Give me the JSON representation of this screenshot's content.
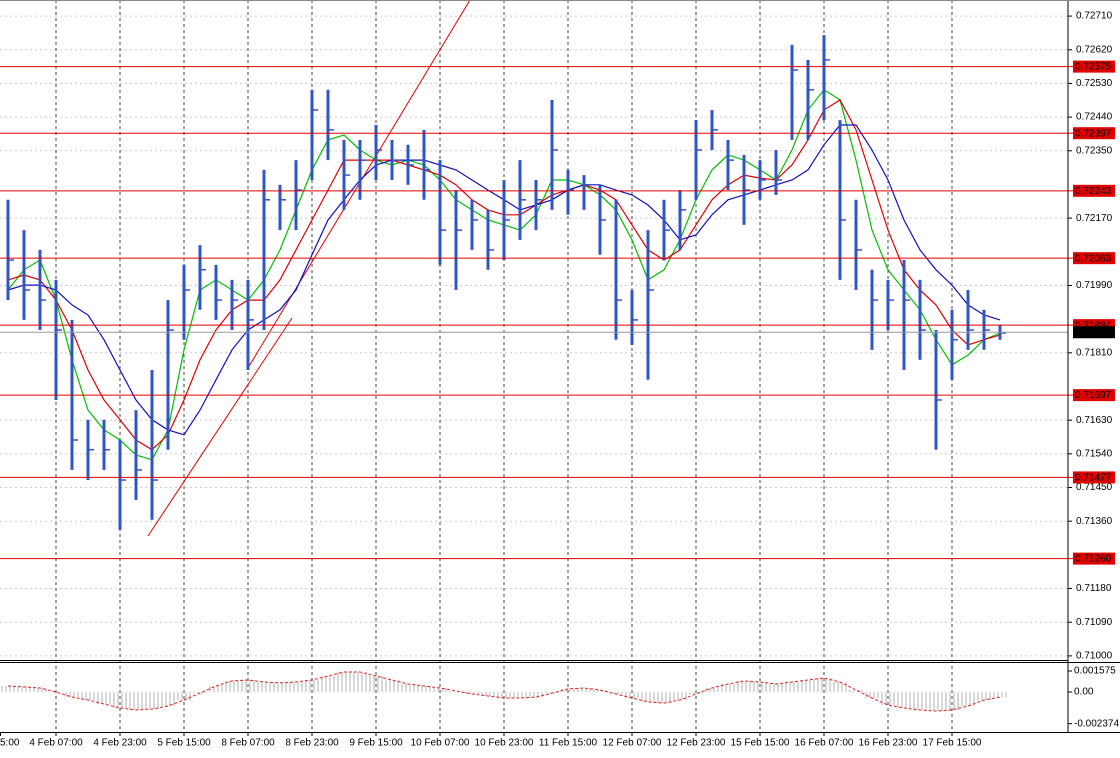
{
  "chart_data": [
    {
      "type": "ohlc",
      "categories": [
        "5:00",
        null,
        null,
        null,
        "4 Feb 07:00",
        null,
        null,
        null,
        "4 Feb 23:00",
        null,
        null,
        null,
        "5 Feb 15:00",
        null,
        null,
        null,
        "8 Feb 07:00",
        null,
        null,
        null,
        "8 Feb 23:00",
        null,
        null,
        null,
        "9 Feb 15:00",
        null,
        null,
        null,
        "10 Feb 07:00",
        null,
        null,
        null,
        "10 Feb 23:00",
        null,
        null,
        null,
        "11 Feb 15:00",
        null,
        null,
        null,
        "12 Feb 07:00",
        null,
        null,
        null,
        "12 Feb 23:00",
        null,
        null,
        null,
        "15 Feb 15:00",
        null,
        null,
        null,
        "16 Feb 07:00",
        null,
        null,
        null,
        "16 Feb 23:00",
        null,
        null,
        null,
        "17 Feb 15:00",
        null,
        null,
        null
      ],
      "high": [
        null,
        0.72219,
        0.72138,
        0.72085,
        0.72005,
        0.71898,
        0.71631,
        0.71631,
        0.71577,
        0.71657,
        0.71764,
        0.71951,
        0.72045,
        0.72098,
        0.72045,
        0.72005,
        0.72005,
        0.72299,
        0.72259,
        0.72325,
        0.72513,
        0.72513,
        0.72379,
        0.72379,
        0.72419,
        0.72379,
        0.72366,
        0.72406,
        0.72325,
        0.72245,
        0.72219,
        0.72192,
        0.72272,
        0.72325,
        0.72272,
        0.72486,
        0.72299,
        0.72285,
        0.72259,
        0.72219,
        0.71978,
        0.72138,
        0.72219,
        0.72245,
        0.72432,
        0.72459,
        0.72379,
        0.72339,
        0.72325,
        0.72352,
        0.72633,
        0.72593,
        0.72659,
        0.72432,
        0.72219,
        0.72032,
        0.72005,
        0.72058,
        0.72005,
        0.71871,
        0.71925,
        0.71978,
        0.71925,
        0.71885
      ],
      "low": [
        null,
        0.71951,
        0.71898,
        0.71871,
        0.71684,
        0.71497,
        0.7147,
        0.71497,
        0.71337,
        0.71417,
        0.71364,
        0.71551,
        0.71845,
        0.71925,
        0.71898,
        0.71871,
        0.71764,
        0.71871,
        0.72138,
        0.72138,
        0.72272,
        0.72325,
        0.72192,
        0.72219,
        0.72272,
        0.72272,
        0.72259,
        0.72219,
        0.72045,
        0.71978,
        0.72085,
        0.72032,
        0.72058,
        0.72112,
        0.72138,
        0.72192,
        0.72179,
        0.72192,
        0.72072,
        0.71845,
        0.71831,
        0.71738,
        0.72058,
        0.72085,
        0.72219,
        0.72352,
        0.72245,
        0.72152,
        0.72219,
        0.72232,
        0.72379,
        0.72379,
        0.72432,
        0.72005,
        0.71978,
        0.71818,
        0.71871,
        0.71764,
        0.71791,
        0.71551,
        0.71738,
        0.71818,
        0.71818,
        0.71845
      ],
      "close": [
        null,
        0.72058,
        0.71978,
        0.71951,
        0.71871,
        0.71577,
        0.71551,
        0.71551,
        0.7147,
        0.71497,
        0.7147,
        0.71871,
        0.71978,
        0.72032,
        0.71951,
        0.71951,
        0.71898,
        0.72219,
        0.72219,
        0.72245,
        0.72459,
        0.72406,
        0.72285,
        0.72325,
        0.72352,
        0.72325,
        0.72312,
        0.72299,
        0.72138,
        0.72138,
        0.72165,
        0.72085,
        0.72165,
        0.72219,
        0.72219,
        0.72352,
        0.72245,
        0.72259,
        0.72165,
        0.71951,
        0.71898,
        0.71978,
        0.72138,
        0.72192,
        0.72352,
        0.72406,
        0.72325,
        0.72245,
        0.72272,
        0.72272,
        0.72566,
        0.72513,
        0.72593,
        0.72165,
        0.72085,
        0.71951,
        0.71951,
        0.71951,
        0.71871,
        0.71684,
        0.71845,
        0.71871,
        0.71871,
        0.71863
      ],
      "color": "#2f55c8",
      "moving_averages": [
        {
          "color": "#00c000",
          "values": [
            null,
            0.71978,
            0.72032,
            0.72058,
            0.71951,
            0.71791,
            0.71657,
            0.71604,
            0.71577,
            0.71537,
            0.71524,
            0.71604,
            0.71818,
            0.71978,
            0.72005,
            0.71978,
            0.71951,
            0.72005,
            0.72085,
            0.72192,
            0.72299,
            0.72379,
            0.72392,
            0.72352,
            0.72325,
            0.72312,
            0.72325,
            0.72312,
            0.72272,
            0.72219,
            0.72192,
            0.72165,
            0.72152,
            0.72138,
            0.72179,
            0.72272,
            0.72272,
            0.72259,
            0.72232,
            0.72192,
            0.72112,
            0.72005,
            0.72032,
            0.72112,
            0.72219,
            0.72299,
            0.72339,
            0.72325,
            0.72299,
            0.72272,
            0.72352,
            0.72459,
            0.72513,
            0.72486,
            0.72325,
            0.72138,
            0.72032,
            0.71978,
            0.71925,
            0.71845,
            0.71778,
            0.71804,
            0.71845,
            0.71863
          ]
        },
        {
          "color": "#e00000",
          "values": [
            null,
            0.72005,
            0.72018,
            0.72005,
            0.71951,
            0.71871,
            0.71764,
            0.71684,
            0.71631,
            0.71577,
            0.71551,
            0.71591,
            0.71684,
            0.71791,
            0.71871,
            0.71925,
            0.71951,
            0.71951,
            0.72005,
            0.72085,
            0.72165,
            0.72245,
            0.72325,
            0.72325,
            0.72325,
            0.72325,
            0.72312,
            0.72299,
            0.72285,
            0.72259,
            0.72219,
            0.72192,
            0.72179,
            0.72179,
            0.72205,
            0.72232,
            0.72245,
            0.72259,
            0.72245,
            0.72219,
            0.72152,
            0.72085,
            0.72058,
            0.72085,
            0.72152,
            0.72219,
            0.72259,
            0.72285,
            0.72277,
            0.72272,
            0.72312,
            0.72379,
            0.72459,
            0.72486,
            0.72406,
            0.72272,
            0.72138,
            0.72032,
            0.71978,
            0.71938,
            0.71871,
            0.71831,
            0.71845,
            0.71858
          ]
        },
        {
          "color": "#1010c0",
          "values": [
            null,
            0.71978,
            0.71991,
            0.71991,
            0.71978,
            0.71938,
            0.71911,
            0.71845,
            0.71764,
            0.71684,
            0.71631,
            0.71604,
            0.71591,
            0.71657,
            0.71738,
            0.71818,
            0.71871,
            0.71898,
            0.71925,
            0.71978,
            0.72072,
            0.72165,
            0.72219,
            0.72272,
            0.72312,
            0.72325,
            0.72325,
            0.72325,
            0.72312,
            0.72299,
            0.72272,
            0.72245,
            0.72219,
            0.72192,
            0.72205,
            0.72219,
            0.72245,
            0.72259,
            0.72259,
            0.72245,
            0.72232,
            0.72205,
            0.72165,
            0.72112,
            0.72125,
            0.72179,
            0.72219,
            0.72232,
            0.72245,
            0.72259,
            0.72272,
            0.72299,
            0.72366,
            0.72419,
            0.72419,
            0.72352,
            0.72272,
            0.72165,
            0.72085,
            0.72032,
            0.71991,
            0.71938,
            0.71911,
            0.71898
          ]
        }
      ],
      "ylim": [
        0.70989,
        0.72753
      ],
      "yticks": [
        {
          "value": 0.7271,
          "label": "0.72710"
        },
        {
          "value": 0.7262,
          "label": "0.72620"
        },
        {
          "value": 0.7253,
          "label": "0.72530"
        },
        {
          "value": 0.7244,
          "label": "0.72440"
        },
        {
          "value": 0.7235,
          "label": "0.72350"
        },
        {
          "value": 0.7217,
          "label": "0.72170"
        },
        {
          "value": 0.7199,
          "label": "0.71990"
        },
        {
          "value": 0.7181,
          "label": "0.71810"
        },
        {
          "value": 0.7163,
          "label": "0.71630"
        },
        {
          "value": 0.7154,
          "label": "0.71540"
        },
        {
          "value": 0.7145,
          "label": "0.71450"
        },
        {
          "value": 0.7136,
          "label": "0.71360"
        },
        {
          "value": 0.7118,
          "label": "0.71180"
        },
        {
          "value": 0.7109,
          "label": "0.71090"
        },
        {
          "value": 0.71,
          "label": "0.71000"
        }
      ],
      "levels": [
        {
          "value": 0.72575,
          "label": "0.72575"
        },
        {
          "value": 0.72397,
          "label": "0.72397"
        },
        {
          "value": 0.72243,
          "label": "0.72243"
        },
        {
          "value": 0.72063,
          "label": "0.72063"
        },
        {
          "value": 0.71884,
          "label": "0.71884"
        },
        {
          "value": 0.71697,
          "label": "0.71697"
        },
        {
          "value": 0.71477,
          "label": "0.71477"
        },
        {
          "value": 0.7126,
          "label": "0.71260"
        }
      ],
      "level_color": "#e00000",
      "last_price": {
        "value": 0.71865,
        "label": "0.71865"
      },
      "grid": true
    },
    {
      "type": "bar",
      "values": [
        null,
        0.00045,
        0.00038,
        0.0003,
        0,
        -0.00038,
        -0.0006,
        -0.0009,
        -0.0012,
        -0.00135,
        -0.00128,
        -0.00105,
        -0.0006,
        -8e-05,
        0.00045,
        0.00083,
        0.0009,
        0.00075,
        0.00068,
        0.00075,
        0.0009,
        0.0012,
        0.0015,
        0.0015,
        0.0012,
        0.0009,
        0.0006,
        0.00045,
        0.0003,
        8e-05,
        -0.00015,
        -0.0003,
        -0.00045,
        -0.00045,
        -0.00038,
        -8e-05,
        0.00023,
        0.0003,
        0.00015,
        -0.00015,
        -0.00045,
        -0.00075,
        -0.00083,
        -0.0006,
        -0.00015,
        0.0003,
        0.0006,
        0.00083,
        0.00075,
        0.0006,
        0.00075,
        0.0009,
        0.00105,
        0.00075,
        0.00015,
        -0.00045,
        -0.00098,
        -0.0012,
        -0.00135,
        -0.00143,
        -0.00135,
        -0.00105,
        -0.0006,
        -0.00038
      ],
      "color": "#b0b0b0",
      "line_color": "#e02020",
      "ylim": [
        -0.003,
        0.00225
      ],
      "yticks": [
        0.001575,
        {
          "value": 0,
          "label": "0.00"
        },
        -0.002374
      ]
    }
  ]
}
